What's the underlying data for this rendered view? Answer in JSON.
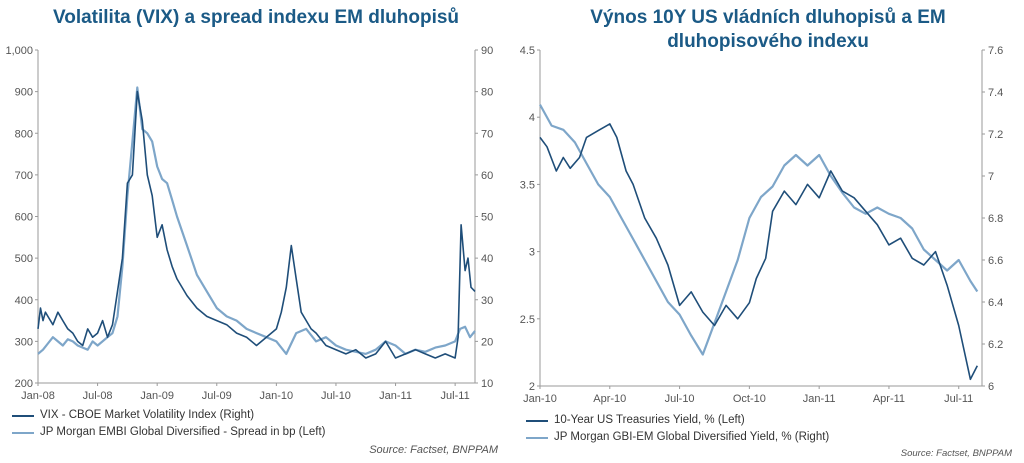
{
  "colors": {
    "dark": "#1f4e79",
    "light": "#7ea6c9",
    "title": "#1b5a86"
  },
  "chart_data": [
    {
      "type": "line",
      "title": "Volatilita (VIX) a spread indexu EM dluhopisů",
      "x_ticks": [
        "Jan-08",
        "Jul-08",
        "Jan-09",
        "Jul-09",
        "Jan-10",
        "Jul-10",
        "Jan-11",
        "Jul-11"
      ],
      "y_left": {
        "lim": [
          200,
          1000
        ],
        "ticks": [
          "200",
          "300",
          "400",
          "500",
          "600",
          "700",
          "800",
          "900",
          "1,000"
        ]
      },
      "y_right": {
        "lim": [
          10,
          90
        ],
        "ticks": [
          "10",
          "20",
          "30",
          "40",
          "50",
          "60",
          "70",
          "80",
          "90"
        ]
      },
      "series": [
        {
          "name": "VIX -  CBOE Market Volatility Index  (Right)",
          "axis": "right",
          "color": "dark",
          "x": [
            0.0,
            0.25,
            0.5,
            0.75,
            1.0,
            1.5,
            2.0,
            2.5,
            3.0,
            3.5,
            4.0,
            4.5,
            5.0,
            5.5,
            6.0,
            6.5,
            7.0,
            7.5,
            8.0,
            8.5,
            9.0,
            9.5,
            10.0,
            10.5,
            11.0,
            11.5,
            12.0,
            12.5,
            13.0,
            13.5,
            14.0,
            15.0,
            16.0,
            17.0,
            18.0,
            19.0,
            20.0,
            21.0,
            22.0,
            23.0,
            24.0,
            24.5,
            25.0,
            25.5,
            26.0,
            26.5,
            27.0,
            27.5,
            28.0,
            29.0,
            30.0,
            31.0,
            32.0,
            33.0,
            34.0,
            35.0,
            36.0,
            37.0,
            38.0,
            39.0,
            40.0,
            41.0,
            42.0,
            42.3,
            42.6,
            43.0,
            43.3,
            43.6,
            44.0
          ],
          "y": [
            23,
            28,
            25,
            27,
            26,
            24,
            27,
            25,
            23,
            22,
            20,
            19,
            23,
            21,
            22,
            25,
            21,
            24,
            32,
            40,
            58,
            60,
            80,
            73,
            60,
            55,
            45,
            48,
            42,
            38,
            35,
            31,
            28,
            26,
            25,
            24,
            22,
            21,
            19,
            21,
            23,
            27,
            33,
            43,
            35,
            27,
            25,
            23,
            22,
            19,
            18,
            17,
            18,
            16,
            17,
            20,
            16,
            17,
            18,
            17,
            16,
            17,
            16,
            21,
            48,
            37,
            40,
            33,
            32
          ]
        },
        {
          "name": "JP Morgan EMBI Global Diversified - Spread in bp (Left)",
          "axis": "left",
          "color": "light",
          "x": [
            0.0,
            0.5,
            1.0,
            1.5,
            2.0,
            2.5,
            3.0,
            3.5,
            4.0,
            4.5,
            5.0,
            5.5,
            6.0,
            7.0,
            7.5,
            8.0,
            8.5,
            9.0,
            9.5,
            10.0,
            10.5,
            11.0,
            11.5,
            12.0,
            12.5,
            13.0,
            13.5,
            14.0,
            15.0,
            16.0,
            17.0,
            18.0,
            19.0,
            20.0,
            21.0,
            22.0,
            23.0,
            24.0,
            25.0,
            26.0,
            27.0,
            28.0,
            29.0,
            30.0,
            31.0,
            32.0,
            33.0,
            34.0,
            35.0,
            36.0,
            37.0,
            38.0,
            39.0,
            40.0,
            41.0,
            42.0,
            42.5,
            43.0,
            43.5,
            44.0
          ],
          "y": [
            270,
            280,
            295,
            310,
            300,
            290,
            305,
            300,
            290,
            285,
            280,
            300,
            290,
            310,
            320,
            360,
            480,
            650,
            780,
            910,
            810,
            800,
            780,
            720,
            690,
            680,
            640,
            600,
            530,
            460,
            420,
            380,
            360,
            350,
            330,
            320,
            310,
            300,
            270,
            320,
            330,
            300,
            310,
            290,
            280,
            275,
            270,
            280,
            300,
            290,
            270,
            280,
            275,
            285,
            290,
            300,
            330,
            335,
            310,
            325
          ]
        }
      ]
    },
    {
      "type": "line",
      "title": "Výnos 10Y US vládních dluhopisů a EM dluhopisového indexu",
      "x_ticks": [
        "Jan-10",
        "Apr-10",
        "Jul-10",
        "Oct-10",
        "Jan-11",
        "Apr-11",
        "Jul-11"
      ],
      "y_left": {
        "lim": [
          2,
          4.5
        ],
        "ticks": [
          "2",
          "2.5",
          "3",
          "3.5",
          "4",
          "4.5"
        ]
      },
      "y_right": {
        "lim": [
          6,
          7.6
        ],
        "ticks": [
          "6",
          "6.2",
          "6.4",
          "6.6",
          "6.8",
          "7",
          "7.2",
          "7.4",
          "7.6"
        ]
      },
      "series": [
        {
          "name": "10-Year US Treasuries Yield, % (Left)",
          "axis": "left",
          "color": "dark",
          "x": [
            0.0,
            0.3,
            0.7,
            1.0,
            1.3,
            1.7,
            2.0,
            2.5,
            3.0,
            3.3,
            3.7,
            4.0,
            4.5,
            5.0,
            5.5,
            6.0,
            6.5,
            7.0,
            7.5,
            8.0,
            8.5,
            9.0,
            9.3,
            9.7,
            10.0,
            10.5,
            11.0,
            11.5,
            12.0,
            12.5,
            13.0,
            13.5,
            14.0,
            14.5,
            15.0,
            15.5,
            16.0,
            16.5,
            17.0,
            17.5,
            18.0,
            18.5,
            18.8
          ],
          "y": [
            3.85,
            3.78,
            3.6,
            3.7,
            3.62,
            3.7,
            3.85,
            3.9,
            3.95,
            3.85,
            3.6,
            3.5,
            3.25,
            3.1,
            2.9,
            2.6,
            2.7,
            2.55,
            2.45,
            2.6,
            2.5,
            2.62,
            2.8,
            2.95,
            3.3,
            3.45,
            3.35,
            3.5,
            3.4,
            3.6,
            3.45,
            3.4,
            3.3,
            3.2,
            3.05,
            3.1,
            2.95,
            2.9,
            3.0,
            2.75,
            2.45,
            2.05,
            2.15
          ]
        },
        {
          "name": "JP Morgan GBI-EM Global Diversified Yield, % (Right)",
          "axis": "right",
          "color": "light",
          "x": [
            0.0,
            0.5,
            1.0,
            1.5,
            2.0,
            2.5,
            3.0,
            3.5,
            4.0,
            4.5,
            5.0,
            5.5,
            6.0,
            6.5,
            7.0,
            7.5,
            8.0,
            8.5,
            9.0,
            9.5,
            10.0,
            10.5,
            11.0,
            11.5,
            12.0,
            12.5,
            13.0,
            13.5,
            14.0,
            14.5,
            15.0,
            15.5,
            16.0,
            16.5,
            17.0,
            17.5,
            18.0,
            18.5,
            18.8
          ],
          "y": [
            7.34,
            7.24,
            7.22,
            7.16,
            7.06,
            6.96,
            6.9,
            6.8,
            6.7,
            6.6,
            6.5,
            6.4,
            6.34,
            6.24,
            6.15,
            6.3,
            6.45,
            6.6,
            6.8,
            6.9,
            6.95,
            7.05,
            7.1,
            7.05,
            7.1,
            7.0,
            6.92,
            6.85,
            6.82,
            6.85,
            6.82,
            6.8,
            6.75,
            6.65,
            6.6,
            6.55,
            6.6,
            6.5,
            6.45
          ]
        }
      ]
    }
  ],
  "sources": [
    "Source: Factset, BNPPAM",
    "Source: Factset, BNPPAM"
  ]
}
